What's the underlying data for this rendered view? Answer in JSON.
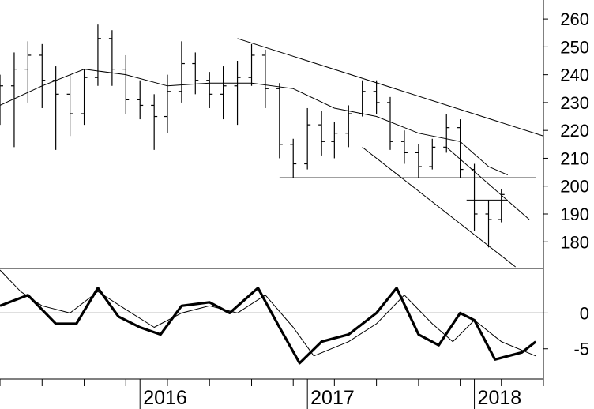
{
  "chart_data": [
    {
      "type": "ohlc",
      "panel": "price",
      "y_ticks": [
        180,
        190,
        200,
        210,
        220,
        230,
        240,
        250,
        260
      ],
      "ylim": [
        171,
        264
      ],
      "x_range": [
        "2015-03-01",
        "2018-06-01"
      ],
      "moving_average_on": true,
      "bars": [
        {
          "date": "2015-03-01",
          "open": 233,
          "high": 240,
          "low": 222,
          "close": 236
        },
        {
          "date": "2015-04-01",
          "open": 236,
          "high": 248,
          "low": 214,
          "close": 242
        },
        {
          "date": "2015-05-01",
          "open": 242,
          "high": 252,
          "low": 230,
          "close": 247
        },
        {
          "date": "2015-06-01",
          "open": 247,
          "high": 251,
          "low": 228,
          "close": 238
        },
        {
          "date": "2015-07-01",
          "open": 238,
          "high": 243,
          "low": 213,
          "close": 233
        },
        {
          "date": "2015-08-01",
          "open": 233,
          "high": 240,
          "low": 218,
          "close": 226
        },
        {
          "date": "2015-09-01",
          "open": 226,
          "high": 242,
          "low": 222,
          "close": 239
        },
        {
          "date": "2015-10-01",
          "open": 239,
          "high": 258,
          "low": 236,
          "close": 253
        },
        {
          "date": "2015-11-01",
          "open": 253,
          "high": 256,
          "low": 236,
          "close": 242
        },
        {
          "date": "2015-12-01",
          "open": 242,
          "high": 247,
          "low": 226,
          "close": 231
        },
        {
          "date": "2016-01-01",
          "open": 231,
          "high": 238,
          "low": 224,
          "close": 229
        },
        {
          "date": "2016-02-01",
          "open": 229,
          "high": 233,
          "low": 213,
          "close": 225
        },
        {
          "date": "2016-03-01",
          "open": 225,
          "high": 240,
          "low": 219,
          "close": 234
        },
        {
          "date": "2016-04-01",
          "open": 234,
          "high": 252,
          "low": 230,
          "close": 244
        },
        {
          "date": "2016-05-01",
          "open": 244,
          "high": 248,
          "low": 233,
          "close": 238
        },
        {
          "date": "2016-06-01",
          "open": 238,
          "high": 241,
          "low": 228,
          "close": 233
        },
        {
          "date": "2016-07-01",
          "open": 233,
          "high": 243,
          "low": 224,
          "close": 236
        },
        {
          "date": "2016-08-01",
          "open": 236,
          "high": 245,
          "low": 222,
          "close": 239
        },
        {
          "date": "2016-09-01",
          "open": 239,
          "high": 251,
          "low": 236,
          "close": 247
        },
        {
          "date": "2016-10-01",
          "open": 247,
          "high": 249,
          "low": 228,
          "close": 235
        },
        {
          "date": "2016-11-01",
          "open": 235,
          "high": 237,
          "low": 210,
          "close": 215
        },
        {
          "date": "2016-12-01",
          "open": 215,
          "high": 217,
          "low": 203,
          "close": 208
        },
        {
          "date": "2017-01-01",
          "open": 208,
          "high": 228,
          "low": 206,
          "close": 222
        },
        {
          "date": "2017-02-01",
          "open": 222,
          "high": 227,
          "low": 211,
          "close": 216
        },
        {
          "date": "2017-03-01",
          "open": 216,
          "high": 223,
          "low": 210,
          "close": 219
        },
        {
          "date": "2017-04-01",
          "open": 219,
          "high": 229,
          "low": 214,
          "close": 226
        },
        {
          "date": "2017-05-01",
          "open": 226,
          "high": 238,
          "low": 225,
          "close": 234
        },
        {
          "date": "2017-06-01",
          "open": 234,
          "high": 238,
          "low": 226,
          "close": 230
        },
        {
          "date": "2017-07-01",
          "open": 230,
          "high": 232,
          "low": 213,
          "close": 216
        },
        {
          "date": "2017-08-01",
          "open": 216,
          "high": 220,
          "low": 208,
          "close": 212
        },
        {
          "date": "2017-09-01",
          "open": 212,
          "high": 215,
          "low": 203,
          "close": 207
        },
        {
          "date": "2017-10-01",
          "open": 207,
          "high": 217,
          "low": 206,
          "close": 214
        },
        {
          "date": "2017-11-01",
          "open": 214,
          "high": 226,
          "low": 212,
          "close": 221
        },
        {
          "date": "2017-12-01",
          "open": 221,
          "high": 224,
          "low": 203,
          "close": 206
        },
        {
          "date": "2018-01-01",
          "open": 206,
          "high": 208,
          "low": 184,
          "close": 190
        },
        {
          "date": "2018-02-01",
          "open": 190,
          "high": 195,
          "low": 178,
          "close": 188
        },
        {
          "date": "2018-03-01",
          "open": 188,
          "high": 199,
          "low": 187,
          "close": 197
        }
      ],
      "moving_average": [
        {
          "date": "2015-03-01",
          "value": 229
        },
        {
          "date": "2015-06-01",
          "value": 236
        },
        {
          "date": "2015-09-01",
          "value": 242
        },
        {
          "date": "2015-12-01",
          "value": 240
        },
        {
          "date": "2016-03-01",
          "value": 236
        },
        {
          "date": "2016-06-01",
          "value": 237
        },
        {
          "date": "2016-09-01",
          "value": 237
        },
        {
          "date": "2016-12-01",
          "value": 235
        },
        {
          "date": "2017-03-01",
          "value": 228
        },
        {
          "date": "2017-06-01",
          "value": 225
        },
        {
          "date": "2017-09-01",
          "value": 219
        },
        {
          "date": "2017-12-01",
          "value": 216
        },
        {
          "date": "2018-02-01",
          "value": 207
        },
        {
          "date": "2018-03-15",
          "value": 204
        }
      ],
      "trend_lines": [
        {
          "from": {
            "date": "2016-08-01",
            "value": 253
          },
          "to": {
            "date": "2018-06-01",
            "value": 218
          }
        },
        {
          "from": {
            "date": "2016-11-01",
            "value": 203
          },
          "to": {
            "date": "2018-05-15",
            "value": 203
          }
        },
        {
          "from": {
            "date": "2017-05-01",
            "value": 214
          },
          "to": {
            "date": "2018-04-01",
            "value": 171
          }
        },
        {
          "from": {
            "date": "2017-11-01",
            "value": 214
          },
          "to": {
            "date": "2018-05-01",
            "value": 188
          }
        },
        {
          "from": {
            "date": "2017-12-15",
            "value": 195
          },
          "to": {
            "date": "2018-03-15",
            "value": 195
          }
        }
      ]
    },
    {
      "type": "line",
      "panel": "oscillator",
      "y_ticks": [
        0,
        -5
      ],
      "ylim": [
        -9,
        6
      ],
      "zero_line": true,
      "series": [
        {
          "role": "oscillator",
          "color": "#000000",
          "points": [
            {
              "date": "2015-03-01",
              "value": 1
            },
            {
              "date": "2015-05-01",
              "value": 2.5
            },
            {
              "date": "2015-07-01",
              "value": -1.5
            },
            {
              "date": "2015-08-15",
              "value": -1.5
            },
            {
              "date": "2015-10-01",
              "value": 3.5
            },
            {
              "date": "2015-11-15",
              "value": -0.5
            },
            {
              "date": "2016-01-01",
              "value": -2
            },
            {
              "date": "2016-02-15",
              "value": -3
            },
            {
              "date": "2016-04-01",
              "value": 1
            },
            {
              "date": "2016-06-01",
              "value": 1.5
            },
            {
              "date": "2016-07-15",
              "value": 0
            },
            {
              "date": "2016-09-15",
              "value": 3.5
            },
            {
              "date": "2016-11-01",
              "value": -2
            },
            {
              "date": "2016-12-15",
              "value": -7
            },
            {
              "date": "2017-02-01",
              "value": -4
            },
            {
              "date": "2017-04-01",
              "value": -3
            },
            {
              "date": "2017-06-01",
              "value": 0
            },
            {
              "date": "2017-07-15",
              "value": 3.5
            },
            {
              "date": "2017-09-01",
              "value": -3
            },
            {
              "date": "2017-10-15",
              "value": -4.5
            },
            {
              "date": "2017-12-01",
              "value": 0
            },
            {
              "date": "2018-01-01",
              "value": -1
            },
            {
              "date": "2018-02-15",
              "value": -6.5
            },
            {
              "date": "2018-04-15",
              "value": -5.5
            },
            {
              "date": "2018-05-15",
              "value": -4
            }
          ]
        },
        {
          "role": "signal",
          "color": "#000000",
          "points": [
            {
              "date": "2015-03-01",
              "value": 6
            },
            {
              "date": "2015-04-15",
              "value": 3
            },
            {
              "date": "2015-06-01",
              "value": 1
            },
            {
              "date": "2015-08-01",
              "value": 0
            },
            {
              "date": "2015-10-01",
              "value": 3
            },
            {
              "date": "2015-12-01",
              "value": 0.5
            },
            {
              "date": "2016-02-01",
              "value": -2
            },
            {
              "date": "2016-04-01",
              "value": 0
            },
            {
              "date": "2016-06-01",
              "value": 1
            },
            {
              "date": "2016-08-01",
              "value": 0
            },
            {
              "date": "2016-10-01",
              "value": 2.5
            },
            {
              "date": "2016-12-01",
              "value": -2
            },
            {
              "date": "2017-01-15",
              "value": -6
            },
            {
              "date": "2017-04-01",
              "value": -4
            },
            {
              "date": "2017-06-01",
              "value": -1.5
            },
            {
              "date": "2017-08-01",
              "value": 2.5
            },
            {
              "date": "2017-10-01",
              "value": -1.5
            },
            {
              "date": "2017-11-15",
              "value": -4
            },
            {
              "date": "2018-01-01",
              "value": -1
            },
            {
              "date": "2018-03-01",
              "value": -4
            },
            {
              "date": "2018-05-15",
              "value": -6
            }
          ]
        }
      ]
    }
  ],
  "x_axis": {
    "year_labels": [
      {
        "date": "2016-01-01",
        "label": "2016"
      },
      {
        "date": "2017-01-01",
        "label": "2017"
      },
      {
        "date": "2018-01-01",
        "label": "2018"
      }
    ],
    "minor_ticks_every_months": 3
  }
}
